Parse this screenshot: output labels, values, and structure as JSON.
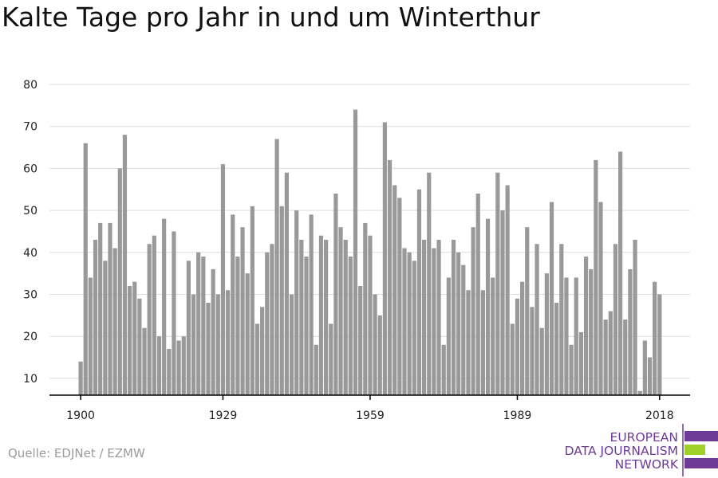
{
  "title": "Kalte Tage pro Jahr in und um Winterthur",
  "source": "Quelle: EDJNet / EZMW",
  "logo": {
    "line1": "EUROPEAN",
    "line2": "DATA JOURNALISM",
    "line3": "NETWORK",
    "purple": "#6d3a96",
    "green": "#9ed12a"
  },
  "colors": {
    "bar": "#999999",
    "grid": "#dddddd",
    "axis": "#000000"
  },
  "chart_data": {
    "type": "bar",
    "title": "Kalte Tage pro Jahr in und um Winterthur",
    "xlabel": "",
    "ylabel": "",
    "ylim": [
      6,
      80
    ],
    "yticks": [
      10,
      20,
      30,
      40,
      50,
      60,
      70,
      80
    ],
    "xticks": [
      1900,
      1929,
      1959,
      1989,
      2018
    ],
    "grid": true,
    "x": [
      1900,
      1901,
      1902,
      1903,
      1904,
      1905,
      1906,
      1907,
      1908,
      1909,
      1910,
      1911,
      1912,
      1913,
      1914,
      1915,
      1916,
      1917,
      1918,
      1919,
      1920,
      1921,
      1922,
      1923,
      1924,
      1925,
      1926,
      1927,
      1928,
      1929,
      1930,
      1931,
      1932,
      1933,
      1934,
      1935,
      1936,
      1937,
      1938,
      1939,
      1940,
      1941,
      1942,
      1943,
      1944,
      1945,
      1946,
      1947,
      1948,
      1949,
      1950,
      1951,
      1952,
      1953,
      1954,
      1955,
      1956,
      1957,
      1958,
      1959,
      1960,
      1961,
      1962,
      1963,
      1964,
      1965,
      1966,
      1967,
      1968,
      1969,
      1970,
      1971,
      1972,
      1973,
      1974,
      1975,
      1976,
      1977,
      1978,
      1979,
      1980,
      1981,
      1982,
      1983,
      1984,
      1985,
      1986,
      1987,
      1988,
      1989,
      1990,
      1991,
      1992,
      1993,
      1994,
      1995,
      1996,
      1997,
      1998,
      1999,
      2000,
      2001,
      2002,
      2003,
      2004,
      2005,
      2006,
      2007,
      2008,
      2009,
      2010,
      2011,
      2012,
      2013,
      2014,
      2015,
      2016,
      2017,
      2018
    ],
    "values": [
      14,
      66,
      34,
      43,
      47,
      38,
      47,
      41,
      60,
      68,
      32,
      33,
      29,
      22,
      42,
      44,
      20,
      48,
      17,
      45,
      19,
      20,
      38,
      30,
      40,
      39,
      28,
      36,
      30,
      61,
      31,
      49,
      39,
      46,
      35,
      51,
      23,
      27,
      40,
      42,
      67,
      51,
      59,
      30,
      50,
      43,
      39,
      49,
      18,
      44,
      43,
      23,
      54,
      46,
      43,
      39,
      74,
      32,
      47,
      44,
      30,
      25,
      71,
      62,
      56,
      53,
      41,
      40,
      38,
      55,
      43,
      59,
      41,
      43,
      18,
      34,
      43,
      40,
      37,
      31,
      46,
      54,
      31,
      48,
      34,
      59,
      50,
      56,
      23,
      29,
      33,
      46,
      27,
      42,
      22,
      35,
      52,
      28,
      42,
      34,
      18,
      34,
      21,
      39,
      36,
      62,
      52,
      24,
      26,
      42,
      64,
      24,
      36,
      43,
      7,
      19,
      15,
      33,
      30
    ]
  }
}
